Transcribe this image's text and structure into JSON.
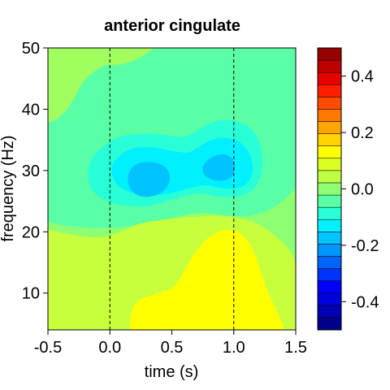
{
  "chart_data": {
    "type": "heatmap",
    "title": "anterior cingulate",
    "xlabel": "time (s)",
    "ylabel": "frequency (Hz)",
    "xlim": [
      -0.5,
      1.5
    ],
    "ylim": [
      4,
      50
    ],
    "x_ticks": [
      "-0.5",
      "0.0",
      "0.5",
      "1.0",
      "1.5"
    ],
    "y_ticks": [
      "10",
      "20",
      "30",
      "40",
      "50"
    ],
    "reference_lines_x": [
      0.0,
      1.0
    ],
    "colorbar": {
      "range": [
        -0.5,
        0.5
      ],
      "step": 0.05,
      "tick_labels": [
        "-0.4",
        "-0.2",
        "0.0",
        "0.2",
        "0.4"
      ],
      "colors": [
        "#00008B",
        "#0000B4",
        "#0000DA",
        "#0000FF",
        "#0032FF",
        "#0064FF",
        "#0096FF",
        "#00C3FF",
        "#00F0FF",
        "#28FFD7",
        "#5AFFA5",
        "#8CFF73",
        "#BEFF41",
        "#DCFF23",
        "#FFFF00",
        "#FFD200",
        "#FFA500",
        "#FF7800",
        "#FF4B00",
        "#FF1E00",
        "#E60000",
        "#BE0000",
        "#960000"
      ]
    },
    "regions": [
      {
        "name": "background",
        "level": 0.0,
        "color": "#8CFF73"
      },
      {
        "name": "upper-left band",
        "level": 0.05,
        "color": "#A0FF5F"
      },
      {
        "name": "central beta decrease",
        "level": -0.05,
        "color": "#5AFFA5"
      },
      {
        "name": "beta decrease inner",
        "level": -0.1,
        "color": "#28FFD7"
      },
      {
        "name": "beta decrease core",
        "level": -0.15,
        "color": "#00F0FF"
      },
      {
        "name": "beta minimum left",
        "level": -0.2,
        "color": "#00C3FF",
        "center": [
          0.3,
          28.5
        ]
      },
      {
        "name": "beta minimum right",
        "level": -0.2,
        "color": "#00C3FF",
        "center": [
          0.88,
          30.5
        ]
      },
      {
        "name": "low-frequency increase",
        "level": 0.05,
        "color": "#C8FF3C"
      },
      {
        "name": "low-frequency peak",
        "level": 0.1,
        "color": "#FFFF00",
        "center": [
          0.8,
          10
        ]
      }
    ]
  }
}
